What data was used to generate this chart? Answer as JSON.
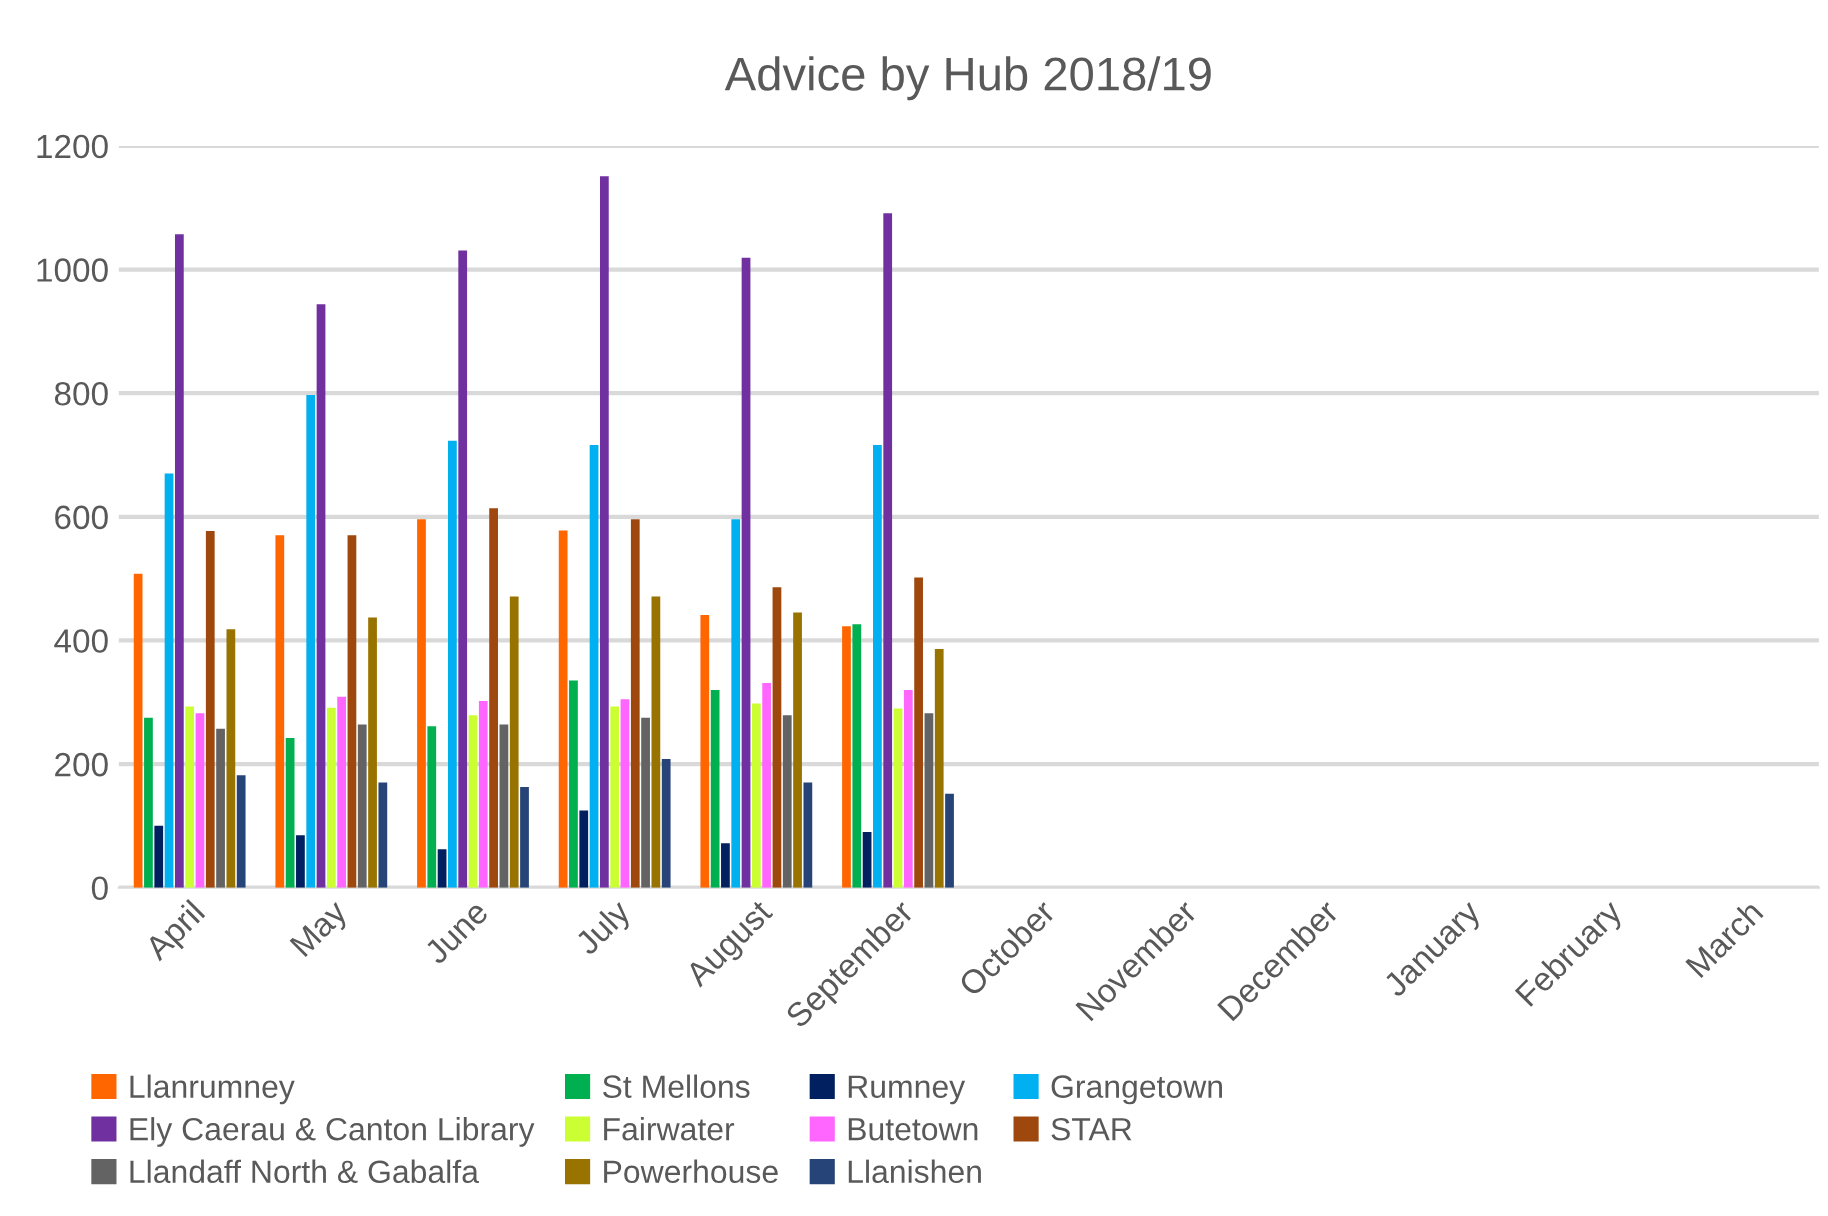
{
  "chart_data": {
    "type": "bar",
    "title": "Advice by Hub 2018/19",
    "categories": [
      "April",
      "May",
      "June",
      "July",
      "August",
      "September",
      "October",
      "November",
      "December",
      "January",
      "February",
      "March"
    ],
    "series": [
      {
        "name": "Llanrumney",
        "color": "#ff6600",
        "values": [
          508,
          570,
          596,
          578,
          441,
          423,
          null,
          null,
          null,
          null,
          null,
          null
        ]
      },
      {
        "name": "St Mellons",
        "color": "#00b050",
        "values": [
          275,
          242,
          261,
          335,
          320,
          426,
          null,
          null,
          null,
          null,
          null,
          null
        ]
      },
      {
        "name": "Rumney",
        "color": "#002060",
        "values": [
          100,
          85,
          62,
          125,
          72,
          90,
          null,
          null,
          null,
          null,
          null,
          null
        ]
      },
      {
        "name": "Grangetown",
        "color": "#00b0f0",
        "values": [
          670,
          797,
          723,
          716,
          596,
          716,
          null,
          null,
          null,
          null,
          null,
          null
        ]
      },
      {
        "name": "Ely Caerau & Canton Library",
        "color": "#7030a0",
        "values": [
          1057,
          944,
          1031,
          1151,
          1019,
          1091,
          null,
          null,
          null,
          null,
          null,
          null
        ]
      },
      {
        "name": "Fairwater",
        "color": "#ccff33",
        "values": [
          293,
          291,
          279,
          293,
          298,
          290,
          null,
          null,
          null,
          null,
          null,
          null
        ]
      },
      {
        "name": "Butetown",
        "color": "#ff66ff",
        "values": [
          282,
          309,
          302,
          305,
          331,
          320,
          null,
          null,
          null,
          null,
          null,
          null
        ]
      },
      {
        "name": "STAR",
        "color": "#9e480e",
        "values": [
          577,
          570,
          614,
          596,
          486,
          502,
          null,
          null,
          null,
          null,
          null,
          null
        ]
      },
      {
        "name": "Llandaff North & Gabalfa",
        "color": "#636363",
        "values": [
          257,
          264,
          264,
          275,
          279,
          282,
          null,
          null,
          null,
          null,
          null,
          null
        ]
      },
      {
        "name": "Powerhouse",
        "color": "#997300",
        "values": [
          418,
          437,
          471,
          471,
          445,
          386,
          null,
          null,
          null,
          null,
          null,
          null
        ]
      },
      {
        "name": "Llanishen",
        "color": "#264478",
        "values": [
          182,
          170,
          163,
          208,
          170,
          152,
          null,
          null,
          null,
          null,
          null,
          null
        ]
      }
    ],
    "ylim": [
      0,
      1200
    ],
    "yticks": [
      0,
      200,
      400,
      600,
      800,
      1000,
      1200
    ],
    "grid": "y",
    "legend": "bottom"
  }
}
